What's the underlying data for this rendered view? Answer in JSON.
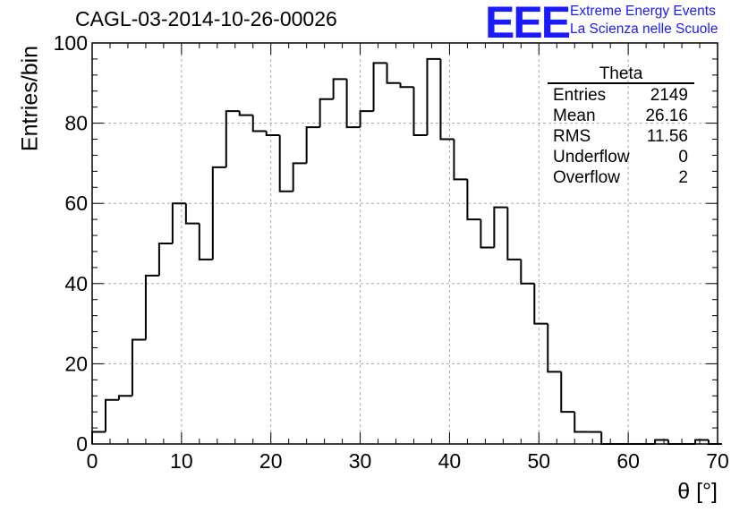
{
  "title": "CAGL-03-2014-10-26-00026",
  "logo": {
    "text": "EEE",
    "line1": "Extreme Energy Events",
    "line2": "La Scienza nelle Scuole",
    "color": "#1a1aff"
  },
  "stats_box": {
    "name": "Theta",
    "rows": [
      {
        "label": "Entries",
        "value": "2149"
      },
      {
        "label": "Mean",
        "value": "26.16"
      },
      {
        "label": "RMS",
        "value": "11.56"
      },
      {
        "label": "Underflow",
        "value": "0"
      },
      {
        "label": "Overflow",
        "value": "2"
      }
    ]
  },
  "chart_data": {
    "type": "bar",
    "style": "step-histogram",
    "xlabel": "θ [°]",
    "ylabel": "Entries/bin",
    "xlim": [
      0,
      70
    ],
    "ylim": [
      0,
      100
    ],
    "x_ticks": [
      0,
      10,
      20,
      30,
      40,
      50,
      60,
      70
    ],
    "y_ticks": [
      0,
      20,
      40,
      60,
      80,
      100
    ],
    "bin_width": 1.5,
    "bin_edges_start": 0,
    "values": [
      3,
      11,
      12,
      26,
      42,
      50,
      60,
      55,
      46,
      69,
      83,
      82,
      78,
      77,
      63,
      70,
      79,
      86,
      91,
      79,
      83,
      95,
      90,
      89,
      77,
      96,
      76,
      66,
      56,
      49,
      59,
      46,
      40,
      30,
      18,
      8,
      3,
      3,
      0,
      0,
      0,
      0,
      1,
      0,
      0,
      1,
      0
    ],
    "grid": true,
    "line_color": "#000000"
  }
}
